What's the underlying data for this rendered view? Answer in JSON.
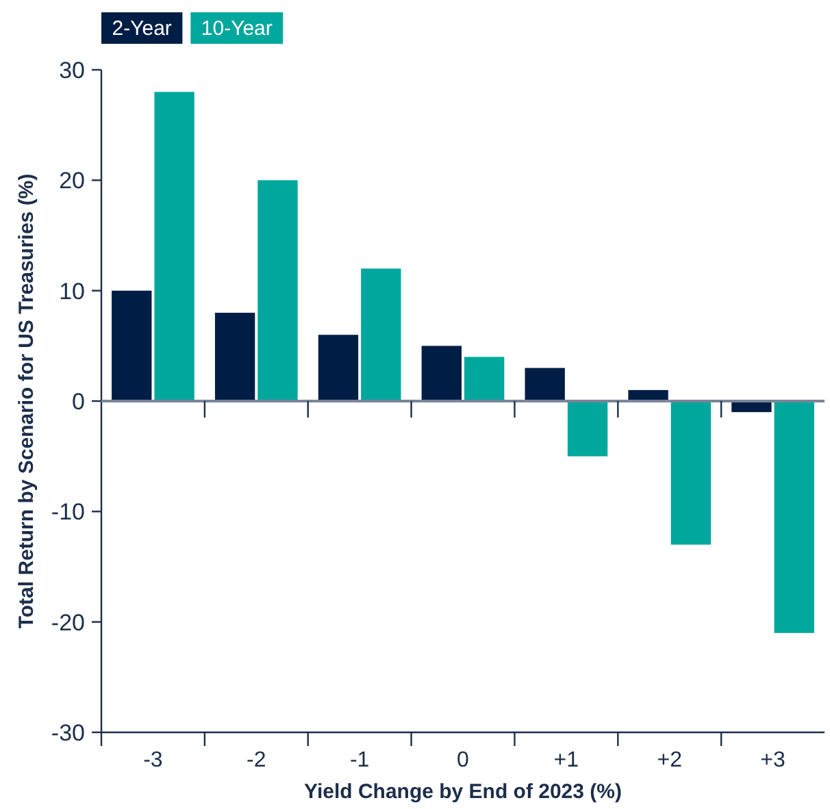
{
  "chart_data": {
    "type": "bar",
    "xlabel": "Yield Change by End of 2023 (%)",
    "ylabel": "Total Return by Scenario for US Treasuries (%)",
    "categories": [
      "-3",
      "-2",
      "-1",
      "0",
      "+1",
      "+2",
      "+3"
    ],
    "series": [
      {
        "name": "2-Year",
        "color": "#001e45",
        "values": [
          10,
          8,
          6,
          5,
          3,
          1,
          -1
        ]
      },
      {
        "name": "10-Year",
        "color": "#00a79d",
        "values": [
          28,
          20,
          12,
          4,
          -5,
          -13,
          -21
        ]
      }
    ],
    "ylim": [
      -30,
      30
    ],
    "yticks": [
      -30,
      -20,
      -10,
      0,
      10,
      20,
      30
    ],
    "legend": "top left"
  }
}
